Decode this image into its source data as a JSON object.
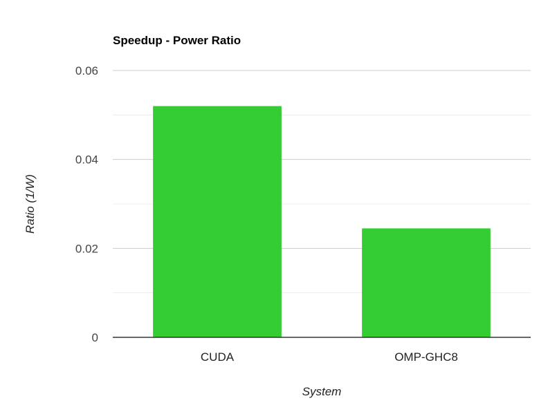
{
  "chart_data": {
    "type": "bar",
    "title": "Speedup - Power Ratio",
    "xlabel": "System",
    "ylabel": "Ratio (1/W)",
    "categories": [
      "CUDA",
      "OMP-GHC8"
    ],
    "series": [
      {
        "values": [
          0.052,
          0.0245
        ]
      }
    ],
    "ylim": [
      0,
      0.06
    ],
    "y_ticks": [
      "0",
      "0.02",
      "0.04",
      "0.06"
    ],
    "y_tick_values": [
      0,
      0.02,
      0.04,
      0.06
    ],
    "minor_gridlines": true,
    "grid": true,
    "legend": "none",
    "bar_color": "#33cc33"
  }
}
